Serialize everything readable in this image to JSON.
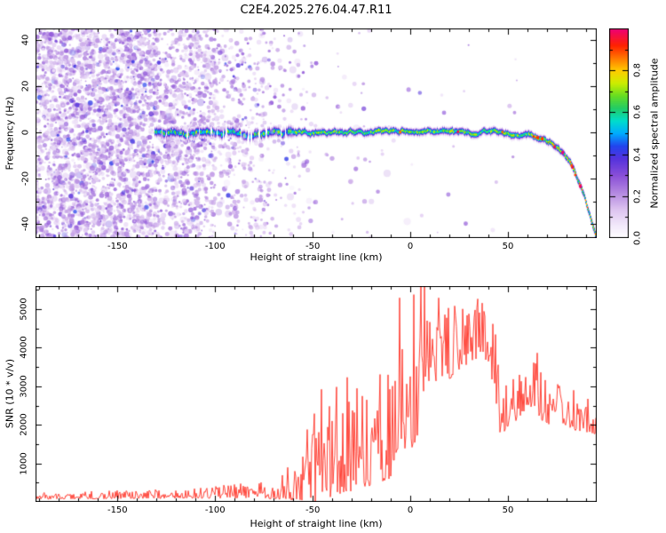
{
  "page": {
    "title": "C2E4.2025.276.04.47.R11",
    "background": "#ffffff"
  },
  "chart_data": [
    {
      "type": "heatmap",
      "panel": "top",
      "description": "Radio occultation spectrogram: purple noise speckle at low heights, narrow high-amplitude signal ridge near 0 Hz that bends down to -46 Hz at the highest straight-line heights",
      "xlabel": "Height of straight line (km)",
      "ylabel": "Frequency (Hz)",
      "xlim": [
        -192,
        95.5
      ],
      "ylim": [
        -46,
        45
      ],
      "xticks": [
        -150,
        -100,
        -50,
        0,
        50
      ],
      "yticks": [
        -40,
        -20,
        0,
        20,
        40
      ],
      "x_minor_step": 10,
      "y_minor_step": 10,
      "seed": 12345,
      "colorbar": {
        "label": "Normalized spectral amplitude",
        "ticks": [
          "0.0",
          "0.2",
          "0.4",
          "0.6",
          "0.8"
        ],
        "tick_values": [
          0,
          0.2,
          0.4,
          0.6,
          0.8
        ],
        "minor_step": 0.1,
        "range": [
          0,
          1
        ],
        "stops": [
          [
            0.0,
            "#ffffff"
          ],
          [
            0.06,
            "#f3eafb"
          ],
          [
            0.14,
            "#dcc2f0"
          ],
          [
            0.22,
            "#b387e0"
          ],
          [
            0.3,
            "#8a4fd8"
          ],
          [
            0.38,
            "#5533dd"
          ],
          [
            0.44,
            "#2244ee"
          ],
          [
            0.5,
            "#00aaff"
          ],
          [
            0.56,
            "#00ddcc"
          ],
          [
            0.62,
            "#22cc66"
          ],
          [
            0.68,
            "#66dd22"
          ],
          [
            0.74,
            "#ccee00"
          ],
          [
            0.8,
            "#ffcc00"
          ],
          [
            0.86,
            "#ff7700"
          ],
          [
            0.92,
            "#ff2200"
          ],
          [
            1.0,
            "#ee0077"
          ]
        ]
      },
      "noise_regions": [
        {
          "x0": -192,
          "x1": -130,
          "density": 0.75
        },
        {
          "x0": -130,
          "x1": -100,
          "density": 0.5
        },
        {
          "x0": -100,
          "x1": -72,
          "density": 0.22
        },
        {
          "x0": -72,
          "x1": -48,
          "density": 0.08
        },
        {
          "x0": -48,
          "x1": -20,
          "density": 0.02
        },
        {
          "x0": -20,
          "x1": 60,
          "density": 0.006
        }
      ],
      "trace": {
        "x_start": -131,
        "x_end": 95.5,
        "seed": 999,
        "bead_prob_mid": 0.018,
        "bead_prob_desc": 0.12,
        "path": [
          [
            -131,
            0
          ],
          [
            -122,
            0.6
          ],
          [
            -114,
            -0.6
          ],
          [
            -106,
            0.3
          ],
          [
            -98,
            -0.4
          ],
          [
            -90,
            0.6
          ],
          [
            -82,
            -0.6
          ],
          [
            -74,
            0.2
          ],
          [
            -66,
            -0.3
          ],
          [
            -58,
            0.4
          ],
          [
            -50,
            -0.4
          ],
          [
            -42,
            0.2
          ],
          [
            -34,
            -0.2
          ],
          [
            -26,
            0.3
          ],
          [
            -18,
            0
          ],
          [
            -10,
            -0.2
          ],
          [
            -2,
            0.1
          ],
          [
            6,
            0
          ],
          [
            14,
            0.2
          ],
          [
            22,
            0
          ],
          [
            30,
            0.1
          ],
          [
            38,
            0
          ],
          [
            46,
            -0.2
          ],
          [
            52,
            -0.4
          ],
          [
            58,
            -0.8
          ],
          [
            63,
            -1.5
          ],
          [
            68,
            -2.8
          ],
          [
            72,
            -4.5
          ],
          [
            76,
            -7
          ],
          [
            80,
            -11
          ],
          [
            83,
            -15
          ],
          [
            86,
            -21
          ],
          [
            89,
            -28
          ],
          [
            92,
            -36
          ],
          [
            94,
            -42
          ],
          [
            95.5,
            -47
          ]
        ]
      }
    },
    {
      "type": "line",
      "panel": "bottom",
      "description": "SNR vs height of straight line: near-zero noisy baseline below -60 km, spiky growth between -55 and 0 km, broad maximum 3500-5500 between 0 and 42 km, sharp drop near 44 km, then 2000-3000 declining tail",
      "xlabel": "Height of straight line (km)",
      "ylabel": "SNR (10 * v/v)",
      "xlim": [
        -192,
        95.5
      ],
      "ylim": [
        0,
        5600
      ],
      "xticks": [
        -150,
        -100,
        -50,
        0,
        50
      ],
      "yticks": [
        1000,
        2000,
        3000,
        4000,
        5000
      ],
      "x_minor_step": 10,
      "y_minor_step": 500,
      "line_color": "#ff3226",
      "seed": 777,
      "anchors": [
        [
          -192,
          130,
          70
        ],
        [
          -170,
          140,
          80
        ],
        [
          -155,
          150,
          90
        ],
        [
          -140,
          160,
          90
        ],
        [
          -125,
          170,
          100
        ],
        [
          -110,
          180,
          110
        ],
        [
          -100,
          200,
          130
        ],
        [
          -92,
          220,
          160
        ],
        [
          -84,
          230,
          170
        ],
        [
          -76,
          240,
          180
        ],
        [
          -68,
          280,
          260
        ],
        [
          -62,
          380,
          420
        ],
        [
          -56,
          350,
          380
        ],
        [
          -53,
          800,
          1300
        ],
        [
          -50,
          700,
          900
        ],
        [
          -46,
          1000,
          1200
        ],
        [
          -42,
          1100,
          1300
        ],
        [
          -38,
          1200,
          1300
        ],
        [
          -34,
          1300,
          1300
        ],
        [
          -30,
          1200,
          1200
        ],
        [
          -26,
          1500,
          1300
        ],
        [
          -22,
          1400,
          1300
        ],
        [
          -18,
          1600,
          1300
        ],
        [
          -14,
          1500,
          1200
        ],
        [
          -10,
          1700,
          1400
        ],
        [
          -7,
          2600,
          1600
        ],
        [
          -4,
          2800,
          1700
        ],
        [
          -1,
          2600,
          1700
        ],
        [
          2,
          2900,
          1800
        ],
        [
          5,
          3300,
          1700
        ],
        [
          8,
          4300,
          1300
        ],
        [
          11,
          3900,
          1100
        ],
        [
          14,
          3900,
          900
        ],
        [
          17,
          4000,
          900
        ],
        [
          20,
          3900,
          900
        ],
        [
          24,
          4000,
          800
        ],
        [
          28,
          4100,
          700
        ],
        [
          32,
          4200,
          700
        ],
        [
          36,
          4300,
          650
        ],
        [
          40,
          4200,
          700
        ],
        [
          43,
          3600,
          900
        ],
        [
          46,
          2200,
          700
        ],
        [
          49,
          2400,
          650
        ],
        [
          52,
          2500,
          650
        ],
        [
          56,
          2700,
          600
        ],
        [
          60,
          2900,
          550
        ],
        [
          64,
          2800,
          550
        ],
        [
          68,
          2500,
          550
        ],
        [
          72,
          2400,
          500
        ],
        [
          76,
          2500,
          480
        ],
        [
          80,
          2300,
          450
        ],
        [
          84,
          2200,
          430
        ],
        [
          88,
          2150,
          400
        ],
        [
          92,
          2100,
          380
        ],
        [
          95,
          2050,
          360
        ]
      ]
    }
  ]
}
